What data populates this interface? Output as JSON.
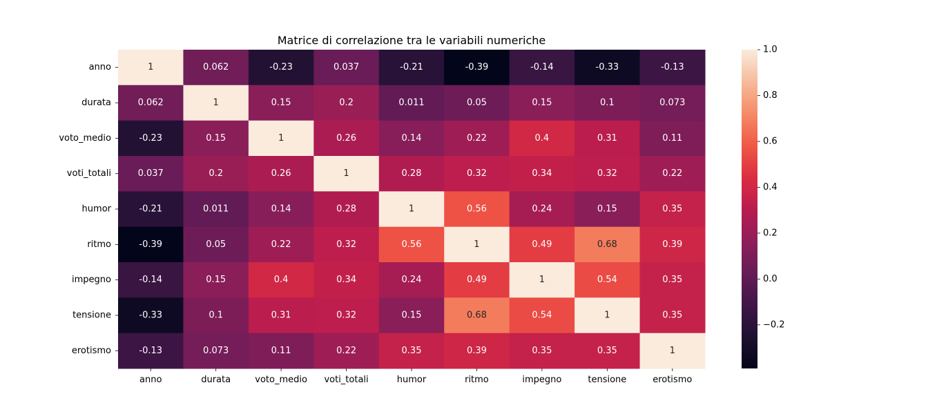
{
  "chart_data": {
    "type": "heatmap",
    "title": "Matrice di correlazione tra le variabili numeriche",
    "rows": [
      "anno",
      "durata",
      "voto_medio",
      "voti_totali",
      "humor",
      "ritmo",
      "impegno",
      "tensione",
      "erotismo"
    ],
    "cols": [
      "anno",
      "durata",
      "voto_medio",
      "voti_totali",
      "humor",
      "ritmo",
      "impegno",
      "tensione",
      "erotismo"
    ],
    "values": [
      [
        1,
        0.062,
        -0.23,
        0.037,
        -0.21,
        -0.39,
        -0.14,
        -0.33,
        -0.13
      ],
      [
        0.062,
        1,
        0.15,
        0.2,
        0.011,
        0.05,
        0.15,
        0.1,
        0.073
      ],
      [
        -0.23,
        0.15,
        1,
        0.26,
        0.14,
        0.22,
        0.4,
        0.31,
        0.11
      ],
      [
        0.037,
        0.2,
        0.26,
        1,
        0.28,
        0.32,
        0.34,
        0.32,
        0.22
      ],
      [
        -0.21,
        0.011,
        0.14,
        0.28,
        1,
        0.56,
        0.24,
        0.15,
        0.35
      ],
      [
        -0.39,
        0.05,
        0.22,
        0.32,
        0.56,
        1,
        0.49,
        0.68,
        0.39
      ],
      [
        -0.14,
        0.15,
        0.4,
        0.34,
        0.24,
        0.49,
        1,
        0.54,
        0.35
      ],
      [
        -0.33,
        0.1,
        0.31,
        0.32,
        0.15,
        0.68,
        0.54,
        1,
        0.35
      ],
      [
        -0.13,
        0.073,
        0.11,
        0.22,
        0.35,
        0.39,
        0.35,
        0.35,
        1
      ]
    ],
    "annotations": [
      [
        "1",
        "0.062",
        "-0.23",
        "0.037",
        "-0.21",
        "-0.39",
        "-0.14",
        "-0.33",
        "-0.13"
      ],
      [
        "0.062",
        "1",
        "0.15",
        "0.2",
        "0.011",
        "0.05",
        "0.15",
        "0.1",
        "0.073"
      ],
      [
        "-0.23",
        "0.15",
        "1",
        "0.26",
        "0.14",
        "0.22",
        "0.4",
        "0.31",
        "0.11"
      ],
      [
        "0.037",
        "0.2",
        "0.26",
        "1",
        "0.28",
        "0.32",
        "0.34",
        "0.32",
        "0.22"
      ],
      [
        "-0.21",
        "0.011",
        "0.14",
        "0.28",
        "1",
        "0.56",
        "0.24",
        "0.15",
        "0.35"
      ],
      [
        "-0.39",
        "0.05",
        "0.22",
        "0.32",
        "0.56",
        "1",
        "0.49",
        "0.68",
        "0.39"
      ],
      [
        "-0.14",
        "0.15",
        "0.4",
        "0.34",
        "0.24",
        "0.49",
        "1",
        "0.54",
        "0.35"
      ],
      [
        "-0.33",
        "0.1",
        "0.31",
        "0.32",
        "0.15",
        "0.68",
        "0.54",
        "1",
        "0.35"
      ],
      [
        "-0.13",
        "0.073",
        "0.11",
        "0.22",
        "0.35",
        "0.39",
        "0.35",
        "0.35",
        "1"
      ]
    ],
    "colormap": "rocket",
    "vmin": -0.39,
    "vmax": 1.0,
    "colorbar_ticks": [
      1.0,
      0.8,
      0.6,
      0.4,
      0.2,
      0.0,
      -0.2
    ],
    "colorbar_tick_labels": [
      "1.0",
      "0.8",
      "0.6",
      "0.4",
      "0.2",
      "0.0",
      "−0.2"
    ]
  }
}
